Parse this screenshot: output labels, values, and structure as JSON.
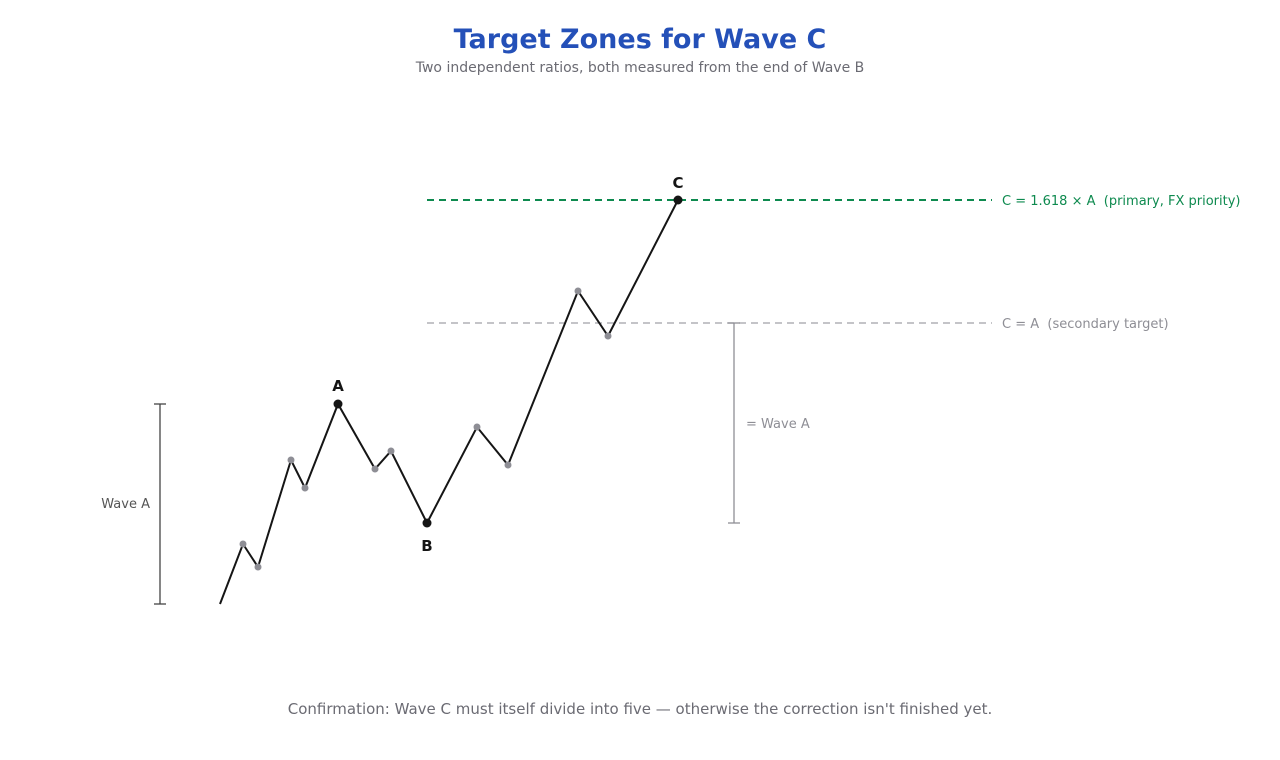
{
  "header": {
    "title": "Target Zones for Wave C",
    "subtitle": "Two independent ratios, both measured from the end of Wave B"
  },
  "points": {
    "a": "A",
    "b": "B",
    "c": "C"
  },
  "targets": [
    {
      "label": "C = 1.618 × A  (primary, FX priority)"
    },
    {
      "label": "C = A  (secondary target)"
    }
  ],
  "measures": {
    "left": "Wave A",
    "right": "= Wave A"
  },
  "footer": "Confirmation: Wave C must itself divide into five — otherwise the correction isn't finished yet."
}
